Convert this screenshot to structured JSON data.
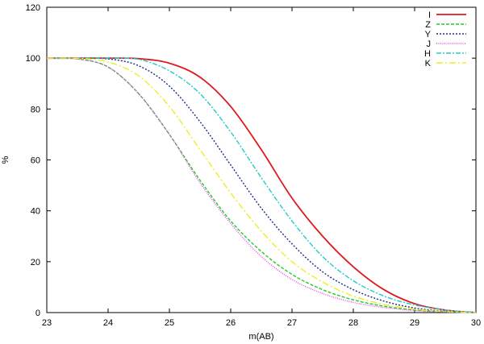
{
  "chart_data": {
    "type": "line",
    "xlabel": "m(AB)",
    "ylabel": "%",
    "xlim": [
      23,
      30
    ],
    "ylim": [
      0,
      120
    ],
    "xticks": [
      23,
      24,
      25,
      26,
      27,
      28,
      29,
      30
    ],
    "yticks": [
      0,
      20,
      40,
      60,
      80,
      100,
      120
    ],
    "grid": false,
    "legend_position": "top-right",
    "x": [
      23.0,
      23.5,
      24.0,
      24.5,
      25.0,
      25.5,
      26.0,
      26.5,
      27.0,
      27.5,
      28.0,
      28.5,
      29.0,
      29.5,
      30.0
    ],
    "series": [
      {
        "name": "I",
        "color": "#e0191e",
        "dash": "solid",
        "values": [
          100,
          100,
          100,
          99.8,
          98,
          92.5,
          81,
          64,
          45,
          30,
          18,
          9,
          3.5,
          1,
          0
        ]
      },
      {
        "name": "Z",
        "color": "#22cc22",
        "dash": "dashed",
        "values": [
          100,
          99.7,
          96.5,
          86,
          70,
          52,
          36,
          24,
          15,
          9,
          5,
          2.5,
          1,
          0.3,
          0
        ]
      },
      {
        "name": "Y",
        "color": "#1a2a8c",
        "dash": "dotted",
        "values": [
          100,
          100,
          99.7,
          97,
          89,
          75,
          58,
          41,
          27,
          16,
          9,
          4.5,
          1.8,
          0.5,
          0
        ]
      },
      {
        "name": "J",
        "color": "#ee44ee",
        "dash": "finedot",
        "values": [
          100,
          99.7,
          96.5,
          86,
          70,
          51,
          35,
          22,
          13,
          7.5,
          4,
          2,
          0.8,
          0.2,
          0
        ]
      },
      {
        "name": "H",
        "color": "#22cccc",
        "dash": "dashdot",
        "values": [
          100,
          100,
          100,
          99.5,
          95,
          86,
          71,
          53,
          36,
          22,
          12.5,
          6.5,
          3,
          1,
          0
        ]
      },
      {
        "name": "K",
        "color": "#eeee22",
        "dash": "longdashdot",
        "values": [
          100,
          99.9,
          98.5,
          93,
          81,
          64,
          47,
          32,
          20,
          12,
          6.5,
          3.2,
          1.3,
          0.4,
          0
        ]
      }
    ]
  }
}
